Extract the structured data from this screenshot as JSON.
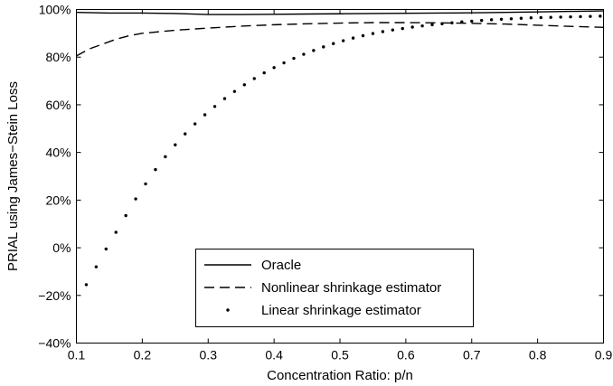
{
  "chart_data": {
    "type": "line",
    "xlabel": "Concentration Ratio: p/n",
    "ylabel": "PRIAL using James−Stein Loss",
    "xlim": [
      0.1,
      0.9
    ],
    "ylim": [
      -40,
      100
    ],
    "x_ticks": [
      0.1,
      0.2,
      0.3,
      0.4,
      0.5,
      0.6,
      0.7,
      0.8,
      0.9
    ],
    "y_ticks": [
      -40,
      -20,
      0,
      20,
      40,
      60,
      80,
      100
    ],
    "x_tick_labels": [
      "0.1",
      "0.2",
      "0.3",
      "0.4",
      "0.5",
      "0.6",
      "0.7",
      "0.8",
      "0.9"
    ],
    "y_tick_labels": [
      "−40%",
      "−20%",
      "0%",
      "20%",
      "40%",
      "60%",
      "80%",
      "100%"
    ],
    "legend_position": "lower-center",
    "grid": false,
    "series": [
      {
        "name": "Oracle",
        "style": "solid",
        "color": "#000000",
        "x": [
          0.1,
          0.15,
          0.2,
          0.25,
          0.3,
          0.35,
          0.4,
          0.45,
          0.5,
          0.55,
          0.6,
          0.65,
          0.7,
          0.75,
          0.8,
          0.85,
          0.9
        ],
        "y": [
          98.8,
          98.5,
          98.5,
          98.3,
          97.9,
          97.9,
          98.0,
          98.1,
          98.2,
          98.3,
          98.4,
          98.5,
          98.6,
          98.8,
          99.0,
          99.2,
          99.4
        ]
      },
      {
        "name": "Nonlinear shrinkage estimator",
        "style": "dashed",
        "color": "#000000",
        "x": [
          0.1,
          0.12,
          0.14,
          0.16,
          0.18,
          0.2,
          0.25,
          0.3,
          0.35,
          0.4,
          0.45,
          0.5,
          0.55,
          0.6,
          0.65,
          0.7,
          0.75,
          0.8,
          0.85,
          0.9
        ],
        "y": [
          80.5,
          83.5,
          85.5,
          87.5,
          89.0,
          90.0,
          91.3,
          92.2,
          93.0,
          93.6,
          94.0,
          94.3,
          94.5,
          94.5,
          94.4,
          94.2,
          93.9,
          93.4,
          92.9,
          92.5
        ]
      },
      {
        "name": "Linear shrinkage estimator",
        "style": "dotted",
        "color": "#000000",
        "x": [
          0.115,
          0.13,
          0.145,
          0.16,
          0.175,
          0.19,
          0.205,
          0.22,
          0.235,
          0.25,
          0.265,
          0.28,
          0.295,
          0.31,
          0.325,
          0.34,
          0.355,
          0.37,
          0.385,
          0.4,
          0.415,
          0.43,
          0.445,
          0.46,
          0.475,
          0.49,
          0.505,
          0.52,
          0.535,
          0.55,
          0.565,
          0.58,
          0.595,
          0.61,
          0.625,
          0.64,
          0.655,
          0.67,
          0.685,
          0.7,
          0.715,
          0.73,
          0.745,
          0.76,
          0.775,
          0.79,
          0.805,
          0.82,
          0.835,
          0.85,
          0.865,
          0.88,
          0.895
        ],
        "y": [
          -15.5,
          -8.0,
          -0.5,
          6.5,
          13.5,
          20.5,
          26.8,
          32.8,
          38.2,
          43.2,
          47.8,
          52.0,
          55.8,
          59.3,
          62.6,
          65.6,
          68.4,
          71.0,
          73.4,
          75.6,
          77.6,
          79.5,
          81.2,
          82.8,
          84.3,
          85.7,
          86.9,
          88.0,
          89.0,
          89.9,
          90.7,
          91.4,
          92.0,
          92.6,
          93.1,
          93.6,
          94.0,
          94.4,
          94.8,
          95.1,
          95.4,
          95.7,
          95.9,
          96.1,
          96.3,
          96.5,
          96.6,
          96.7,
          96.8,
          96.9,
          97.0,
          97.1,
          97.2
        ]
      }
    ]
  }
}
